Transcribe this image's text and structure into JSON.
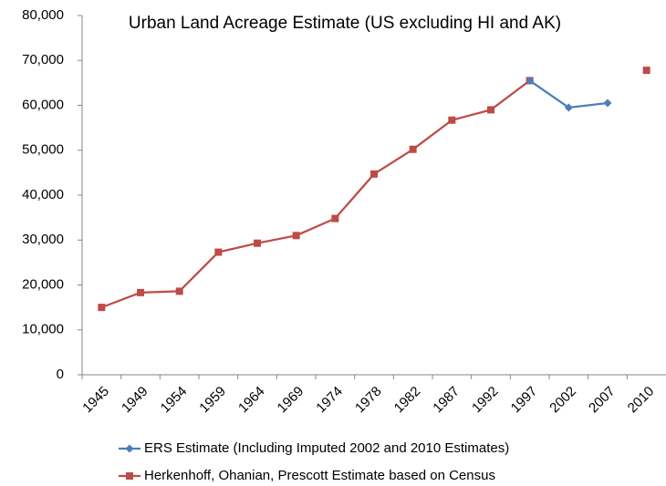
{
  "chart_data": {
    "type": "line",
    "title": "Urban Land Acreage Estimate (US excluding HI and AK)",
    "categories": [
      "1945",
      "1949",
      "1954",
      "1959",
      "1964",
      "1969",
      "1974",
      "1978",
      "1982",
      "1987",
      "1992",
      "1997",
      "2002",
      "2007",
      "2010"
    ],
    "series": [
      {
        "name": "ERS Estimate (Including Imputed 2002 and 2010 Estimates)",
        "color": "#4a7ebb",
        "marker": "diamond",
        "values": [
          null,
          null,
          null,
          null,
          null,
          null,
          null,
          null,
          null,
          null,
          null,
          65500,
          59500,
          60500,
          null
        ]
      },
      {
        "name": "Herkenhoff, Ohanian, Prescott Estimate based on Census",
        "color": "#be4b48",
        "marker": "square",
        "values": [
          15000,
          18300,
          18600,
          27300,
          29300,
          31000,
          34800,
          44700,
          50200,
          56700,
          59000,
          65500,
          null,
          null,
          67800
        ]
      }
    ],
    "ylim": [
      0,
      80000
    ],
    "yticks": [
      0,
      {
        "value": 10000,
        "label": "10,000"
      },
      {
        "value": 20000,
        "label": "20,000"
      },
      {
        "value": 30000,
        "label": "30,000"
      },
      {
        "value": 40000,
        "label": "40,000"
      },
      {
        "value": 50000,
        "label": "50,000"
      },
      {
        "value": 60000,
        "label": "60,000"
      },
      {
        "value": 70000,
        "label": "70,000"
      },
      {
        "value": 80000,
        "label": "80,000"
      }
    ],
    "grid": false,
    "legend": "bottom"
  }
}
